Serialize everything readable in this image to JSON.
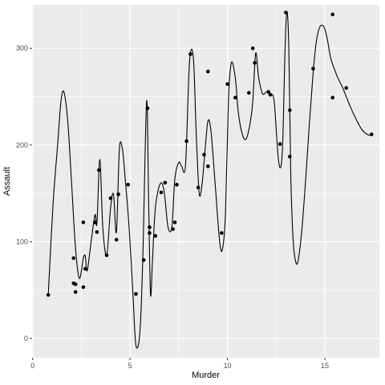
{
  "chart_data": {
    "type": "scatter",
    "title": "",
    "xlabel": "Murder",
    "ylabel": "Assault",
    "xlim": [
      -0.03,
      17.8
    ],
    "ylim": [
      -20,
      345
    ],
    "x_ticks": [
      0,
      5,
      10,
      15
    ],
    "x_tick_labels": [
      "0",
      "5",
      "10",
      "15"
    ],
    "y_ticks": [
      0,
      100,
      200,
      300
    ],
    "y_tick_labels": [
      "0",
      "100",
      "200",
      "300"
    ],
    "grid": true,
    "legend": "none",
    "colors": {
      "panel_background": "#EBEBEB",
      "grid_major": "#FFFFFF",
      "points": "#000000",
      "line": "#000000",
      "tick_text": "#4D4D4D"
    },
    "points": [
      {
        "x": 0.8,
        "y": 45
      },
      {
        "x": 2.1,
        "y": 57
      },
      {
        "x": 2.1,
        "y": 83
      },
      {
        "x": 2.2,
        "y": 48
      },
      {
        "x": 2.2,
        "y": 56
      },
      {
        "x": 2.6,
        "y": 53
      },
      {
        "x": 2.6,
        "y": 120
      },
      {
        "x": 2.7,
        "y": 72
      },
      {
        "x": 3.2,
        "y": 120
      },
      {
        "x": 3.3,
        "y": 110
      },
      {
        "x": 3.4,
        "y": 174
      },
      {
        "x": 3.8,
        "y": 86
      },
      {
        "x": 4.0,
        "y": 145
      },
      {
        "x": 4.3,
        "y": 102
      },
      {
        "x": 4.4,
        "y": 149
      },
      {
        "x": 4.9,
        "y": 159
      },
      {
        "x": 5.3,
        "y": 46
      },
      {
        "x": 5.7,
        "y": 81
      },
      {
        "x": 5.9,
        "y": 238
      },
      {
        "x": 6.0,
        "y": 109
      },
      {
        "x": 6.0,
        "y": 115
      },
      {
        "x": 6.3,
        "y": 106
      },
      {
        "x": 6.6,
        "y": 151
      },
      {
        "x": 6.8,
        "y": 161
      },
      {
        "x": 7.2,
        "y": 113
      },
      {
        "x": 7.3,
        "y": 120
      },
      {
        "x": 7.4,
        "y": 159
      },
      {
        "x": 7.9,
        "y": 204
      },
      {
        "x": 8.1,
        "y": 294
      },
      {
        "x": 8.5,
        "y": 156
      },
      {
        "x": 8.8,
        "y": 190
      },
      {
        "x": 9.0,
        "y": 276
      },
      {
        "x": 9.0,
        "y": 178
      },
      {
        "x": 9.7,
        "y": 109
      },
      {
        "x": 10.0,
        "y": 263
      },
      {
        "x": 10.4,
        "y": 249
      },
      {
        "x": 11.1,
        "y": 254
      },
      {
        "x": 11.3,
        "y": 300
      },
      {
        "x": 11.4,
        "y": 285
      },
      {
        "x": 12.1,
        "y": 255
      },
      {
        "x": 12.2,
        "y": 252
      },
      {
        "x": 12.7,
        "y": 201
      },
      {
        "x": 13.0,
        "y": 337
      },
      {
        "x": 13.2,
        "y": 236
      },
      {
        "x": 13.2,
        "y": 188
      },
      {
        "x": 14.4,
        "y": 279
      },
      {
        "x": 15.4,
        "y": 249
      },
      {
        "x": 15.4,
        "y": 335
      },
      {
        "x": 16.1,
        "y": 259
      },
      {
        "x": 17.4,
        "y": 211
      }
    ],
    "line": {
      "x": [
        0.8,
        1.05,
        1.3,
        1.45,
        1.6,
        1.8,
        2.0,
        2.2,
        2.4,
        2.6,
        2.7,
        2.8,
        3.0,
        3.2,
        3.3,
        3.45,
        3.6,
        3.8,
        4.0,
        4.15,
        4.3,
        4.45,
        4.6,
        4.75,
        4.95,
        5.15,
        5.3,
        5.5,
        5.65,
        5.85,
        5.95,
        6.05,
        6.15,
        6.3,
        6.55,
        6.75,
        6.95,
        7.15,
        7.3,
        7.5,
        7.65,
        7.85,
        8.05,
        8.25,
        8.4,
        8.55,
        8.7,
        8.85,
        9.0,
        9.15,
        9.35,
        9.6,
        9.75,
        9.9,
        10.05,
        10.2,
        10.4,
        10.55,
        10.75,
        10.95,
        11.15,
        11.3,
        11.45,
        11.6,
        11.8,
        12.0,
        12.2,
        12.4,
        12.6,
        12.75,
        12.85,
        12.95,
        13.05,
        13.15,
        13.25,
        13.35,
        13.45,
        13.6,
        13.8,
        14.0,
        14.2,
        14.4,
        14.55,
        14.7,
        14.85,
        15.0,
        15.15,
        15.3,
        15.5,
        15.7,
        15.9,
        16.1,
        16.3,
        16.5,
        16.7,
        16.9,
        17.1,
        17.3,
        17.4
      ],
      "y": [
        45,
        140,
        205,
        245,
        255,
        225,
        160,
        93,
        62,
        83,
        85,
        70,
        100,
        128,
        119,
        185,
        115,
        86,
        135,
        149,
        110,
        195,
        197,
        165,
        115,
        45,
        -7,
        5,
        80,
        245,
        146,
        46,
        80,
        135,
        160,
        152,
        115,
        116,
        165,
        182,
        178,
        180,
        285,
        290,
        210,
        150,
        160,
        195,
        225,
        215,
        165,
        100,
        93,
        130,
        245,
        285,
        270,
        235,
        212,
        206,
        221,
        245,
        295,
        270,
        253,
        255,
        253,
        245,
        188,
        178,
        210,
        295,
        338,
        300,
        170,
        110,
        85,
        78,
        108,
        160,
        220,
        275,
        305,
        320,
        324,
        320,
        307,
        290,
        278,
        268,
        260,
        250,
        240,
        231,
        223,
        216,
        212,
        210,
        211
      ]
    }
  }
}
